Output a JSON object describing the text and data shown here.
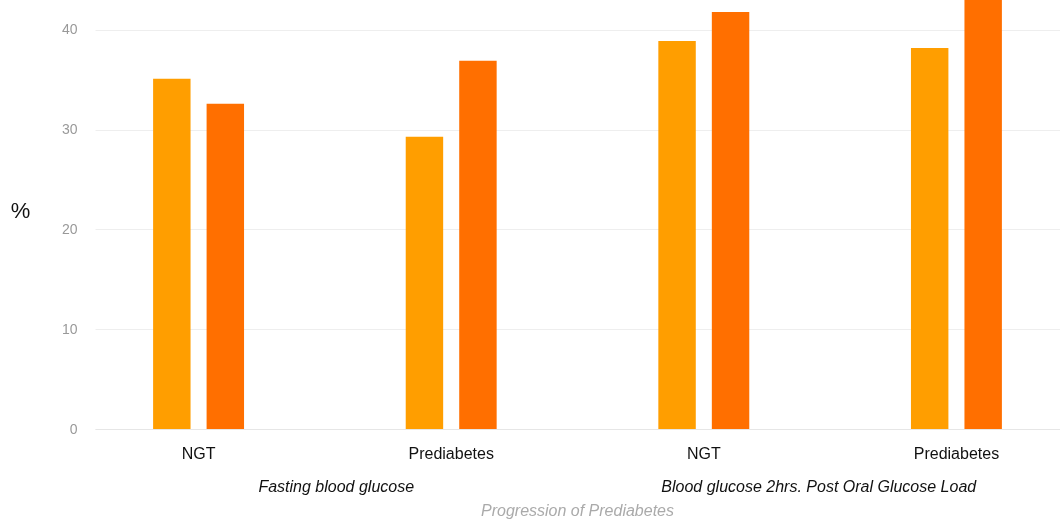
{
  "chart_data": {
    "type": "bar",
    "xlabel": "Progression of Prediabetes",
    "ylabel": "%",
    "categories": [
      "NGT",
      "Prediabetes",
      "NGT",
      "Prediabetes"
    ],
    "series": [
      {
        "color": "#ff9e00",
        "values": [
          35.1,
          29.3,
          38.9,
          38.2
        ]
      },
      {
        "color": "#ff6f00",
        "values": [
          32.6,
          36.9,
          41.8,
          43
        ]
      }
    ],
    "ylim": [
      0,
      43
    ],
    "yticks": [
      0,
      10,
      20,
      30,
      40
    ],
    "grid": "y",
    "annotations": [
      "Fasting blood glucose",
      "Blood glucose 2hrs. Post Oral Glucose Load"
    ]
  }
}
